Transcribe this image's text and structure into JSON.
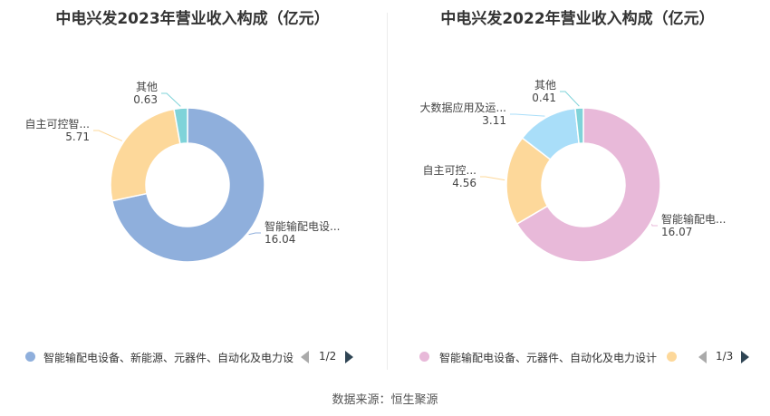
{
  "source": "数据来源：恒生聚源",
  "chart_data": [
    {
      "type": "pie",
      "title": "中电兴发2023年营业收入构成（亿元）",
      "slices": [
        {
          "label": "智能输配电设...",
          "value": 16.04,
          "color": "#8fafdc"
        },
        {
          "label": "自主可控智...",
          "value": 5.71,
          "color": "#fdd89a"
        },
        {
          "label": "其他",
          "value": 0.63,
          "color": "#7fd3d9"
        }
      ],
      "legend": {
        "items": [
          {
            "label": "智能输配电设备、新能源、元器件、自动化及电力设",
            "color": "#8fafdc"
          }
        ],
        "page": "1/2",
        "position": "bottom"
      }
    },
    {
      "type": "pie",
      "title": "中电兴发2022年营业收入构成（亿元）",
      "slices": [
        {
          "label": "智能输配电...",
          "value": 16.07,
          "color": "#e8b9d9"
        },
        {
          "label": "自主可控...",
          "value": 4.56,
          "color": "#fdd89a"
        },
        {
          "label": "大数据应用及运...",
          "value": 3.11,
          "color": "#a9def9"
        },
        {
          "label": "其他",
          "value": 0.41,
          "color": "#7fd3d9"
        }
      ],
      "legend": {
        "items": [
          {
            "label": "智能输配电设备、元器件、自动化及电力设计",
            "color": "#e8b9d9"
          },
          {
            "label": "",
            "color": "#fdd89a"
          }
        ],
        "page": "1/3",
        "position": "bottom"
      }
    }
  ]
}
